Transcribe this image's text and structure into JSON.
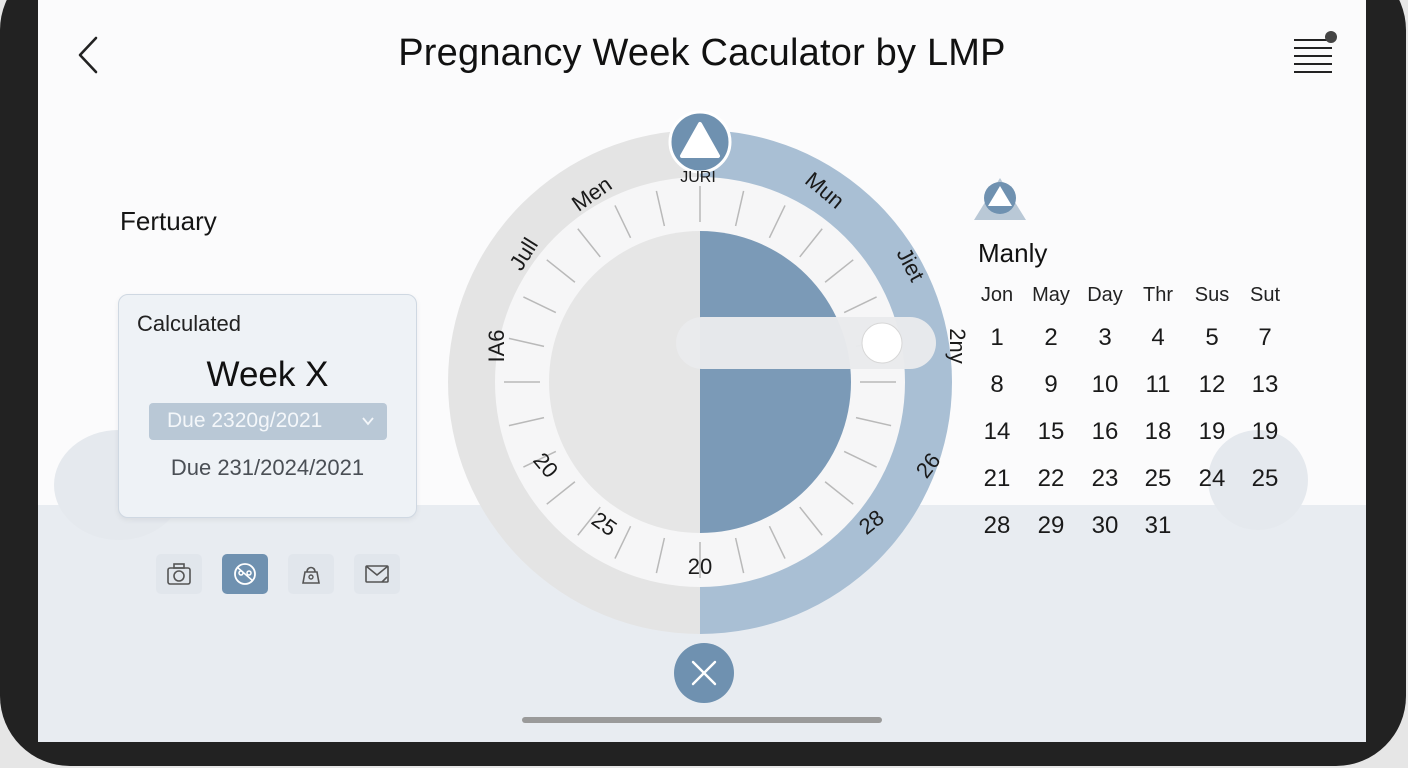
{
  "header": {
    "title": "Pregnancy Week Caculator by LMP",
    "back_icon": "chevron-left-icon",
    "menu_icon": "menu-notification-icon"
  },
  "left": {
    "month_label": "Fertuary",
    "card": {
      "label": "Calculated",
      "week": "Week X",
      "due_select": "Due 2320g/2021",
      "due_line": "Due 231/2024/2021"
    },
    "action_icons": [
      "camera-icon",
      "baby-icon",
      "bag-icon",
      "mail-icon"
    ]
  },
  "dial": {
    "top_marker_icon": "triangle-icon",
    "labels": {
      "men": "Men",
      "juri": "JURI",
      "mun": "Mun",
      "jiet": "Jiet",
      "2ny": "2ny",
      "jull": "Jull",
      "ia6": "IA6",
      "n20_left": "20",
      "n25": "25",
      "n20_bottom": "20",
      "n28": "28",
      "n26": "26"
    }
  },
  "calendar": {
    "logo_icon": "triangle-logo-icon",
    "title": "Manly",
    "headers": [
      "Jon",
      "May",
      "Day",
      "Thr",
      "Sus",
      "Sut"
    ],
    "rows": [
      [
        "1",
        "2",
        "3",
        "4",
        "5",
        "7"
      ],
      [
        "8",
        "9",
        "10",
        "11",
        "12",
        "13"
      ],
      [
        "14",
        "15",
        "16",
        "18",
        "19",
        "19"
      ],
      [
        "21",
        "22",
        "23",
        "25",
        "24",
        "25"
      ],
      [
        "28",
        "29",
        "30",
        "31"
      ]
    ]
  },
  "colors": {
    "accent": "#6f91b0",
    "accent_light": "#a9bfd4",
    "ring_gray": "#e4e4e4"
  }
}
